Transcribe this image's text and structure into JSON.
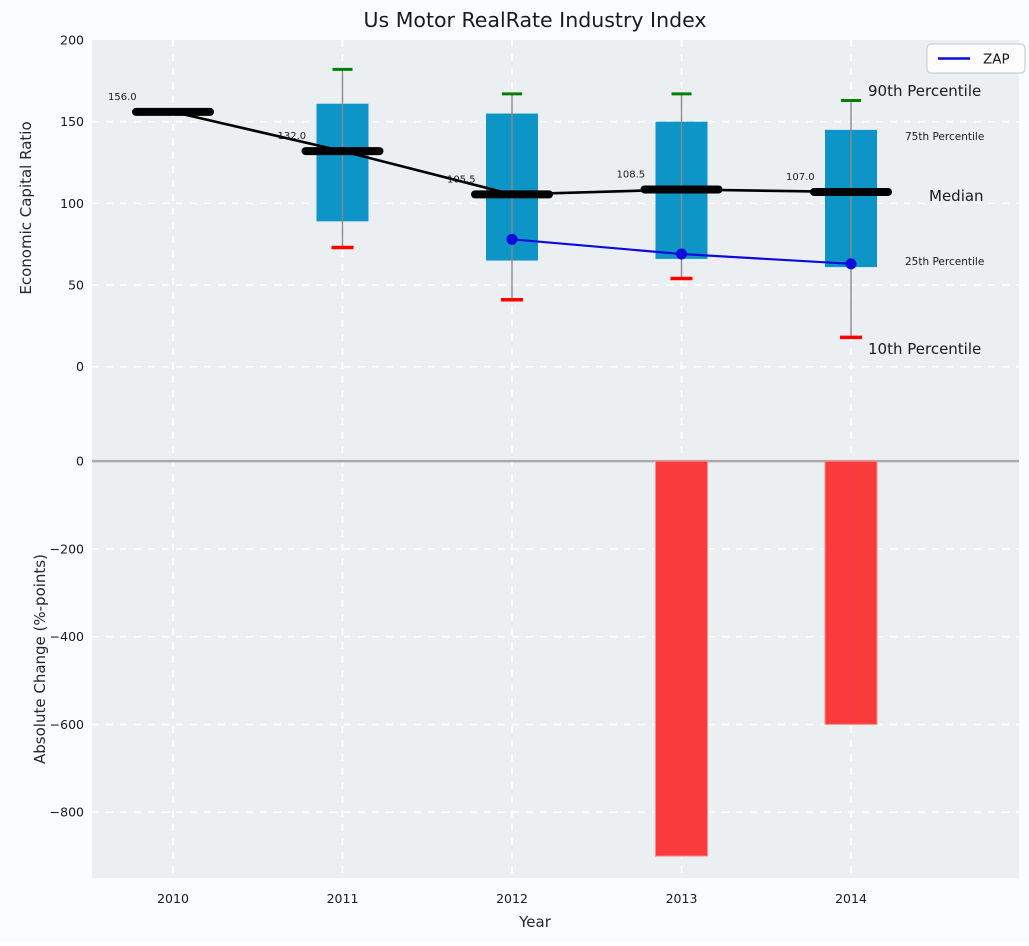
{
  "figure": {
    "title": "Us Motor RealRate Industry Index",
    "legend": {
      "label": "ZAP"
    },
    "annotations": {
      "p90": "90th Percentile",
      "p75": "75th Percentile",
      "median": "Median",
      "p25": "25th Percentile",
      "p10": "10th Percentile"
    }
  },
  "colors": {
    "plot_bg": "#ECEFF1",
    "fig_bg": "#FBFCFD",
    "grid_white": "#FFFFFF",
    "box_cyan": "#0D95C8",
    "zap_blue": "#0B0BE0",
    "bar_red": "#FA3B3B",
    "bar_red_edge": "#FF8D8D",
    "median_black": "#000000",
    "trend_black": "#000000",
    "whisker_gray": "#8A8A8A",
    "cap_green": "#008000",
    "cap_red": "#FF0000",
    "zero_line_gray": "#ABABAB",
    "tick_color": "#3B4D63",
    "pct_label_cyan": "#1A9BD5",
    "value_label_black": "#000000"
  },
  "chart_data": [
    {
      "type": "box-percentile-with-line",
      "title": "Us Motor RealRate Industry Index",
      "ylabel": "Economic Capital Ratio",
      "categories": [
        "2010",
        "2011",
        "2012",
        "2013",
        "2014"
      ],
      "ylim": [
        -43,
        200
      ],
      "yticks": [
        0,
        50,
        100,
        150,
        200
      ],
      "grid": true,
      "legend_position": "upper right",
      "series": {
        "median": [
          156.0,
          132.0,
          105.5,
          108.5,
          107.0
        ],
        "p90": [
          null,
          182,
          167,
          167,
          163
        ],
        "p75": [
          null,
          161,
          155,
          150,
          145
        ],
        "p25": [
          null,
          89,
          65,
          66,
          61
        ],
        "p10": [
          null,
          73,
          41,
          54,
          18
        ],
        "zap": [
          null,
          null,
          78,
          69,
          63
        ]
      },
      "median_labels": [
        "156.0",
        "132.0",
        "105.5",
        "108.5",
        "107.0"
      ]
    },
    {
      "type": "bar",
      "xlabel": "Year",
      "ylabel": "Absolute Change (%-points)",
      "categories": [
        "2010",
        "2011",
        "2012",
        "2013",
        "2014"
      ],
      "values": [
        null,
        null,
        null,
        -900,
        -600
      ],
      "ylim": [
        -950,
        55
      ],
      "yticks": [
        0,
        -200,
        -400,
        -600,
        -800
      ],
      "grid": true
    }
  ]
}
